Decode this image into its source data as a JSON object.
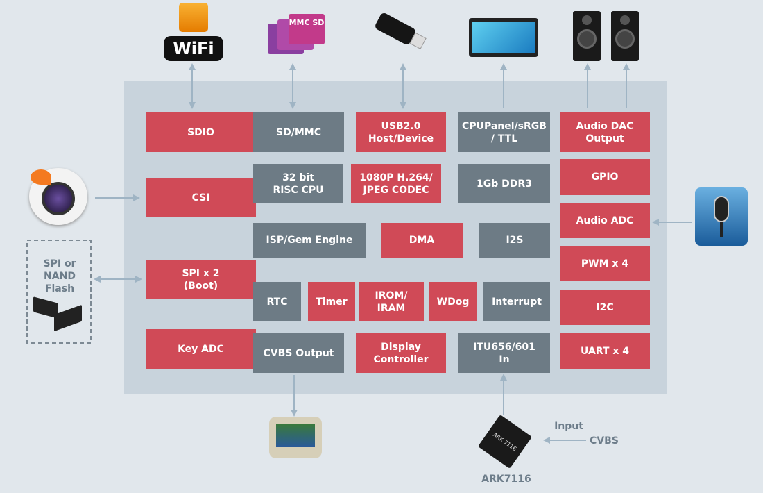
{
  "colors": {
    "background": "#e1e7ec",
    "panel": "#c8d3dc",
    "peripheral": "#d04a57",
    "core": "#6d7b85",
    "arrow": "#9fb4c4"
  },
  "blocks": [
    {
      "id": "sdio",
      "label": "SDIO",
      "type": "red"
    },
    {
      "id": "sd-mmc",
      "label": "SD/MMC",
      "type": "gray"
    },
    {
      "id": "usb",
      "label": "USB2.0\nHost/Device",
      "type": "red"
    },
    {
      "id": "cpu-panel",
      "label": "CPUPanel/sRGB\n/ TTL",
      "type": "gray"
    },
    {
      "id": "audio-dac",
      "label": "Audio DAC\nOutput",
      "type": "red"
    },
    {
      "id": "csi",
      "label": "CSI",
      "type": "red"
    },
    {
      "id": "risc-cpu",
      "label": "32 bit\nRISC CPU",
      "type": "gray"
    },
    {
      "id": "codec",
      "label": "1080P H.264/\nJPEG CODEC",
      "type": "red"
    },
    {
      "id": "ddr3",
      "label": "1Gb DDR3",
      "type": "gray"
    },
    {
      "id": "gpio",
      "label": "GPIO",
      "type": "red"
    },
    {
      "id": "isp",
      "label": "ISP/Gem Engine",
      "type": "gray"
    },
    {
      "id": "dma",
      "label": "DMA",
      "type": "red"
    },
    {
      "id": "i2s",
      "label": "I2S",
      "type": "gray"
    },
    {
      "id": "audio-adc",
      "label": "Audio ADC",
      "type": "red"
    },
    {
      "id": "spi",
      "label": "SPI x 2\n(Boot)",
      "type": "red"
    },
    {
      "id": "rtc",
      "label": "RTC",
      "type": "gray"
    },
    {
      "id": "timer",
      "label": "Timer",
      "type": "red"
    },
    {
      "id": "irom",
      "label": "IROM/\nIRAM",
      "type": "red"
    },
    {
      "id": "wdog",
      "label": "WDog",
      "type": "red"
    },
    {
      "id": "interrupt",
      "label": "Interrupt",
      "type": "gray"
    },
    {
      "id": "pwm",
      "label": "PWM x 4",
      "type": "red"
    },
    {
      "id": "i2c",
      "label": "I2C",
      "type": "red"
    },
    {
      "id": "key-adc",
      "label": "Key ADC",
      "type": "red"
    },
    {
      "id": "cvbs-output",
      "label": "CVBS Output",
      "type": "gray"
    },
    {
      "id": "display",
      "label": "Display\nController",
      "type": "red"
    },
    {
      "id": "itu",
      "label": "ITU656/601\nIn",
      "type": "gray"
    },
    {
      "id": "uart",
      "label": "UART x 4",
      "type": "red"
    }
  ],
  "labels": {
    "flash": "SPI or\nNAND\nFlash",
    "input": "Input",
    "cvbs": "CVBS",
    "chip": "ARK7116"
  },
  "logos": {
    "wifi": "WiFi",
    "mmc": "MMC SD",
    "chip_mark": "ARK 7116"
  }
}
